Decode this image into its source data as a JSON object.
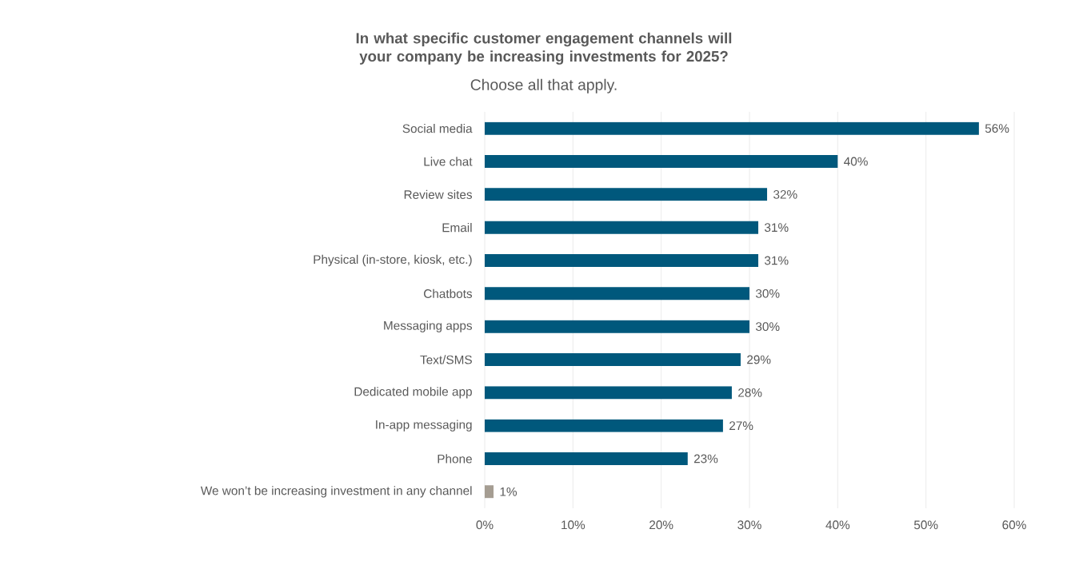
{
  "chart_data": {
    "type": "bar",
    "orientation": "horizontal",
    "title": "In what specific customer engagement channels will your company be increasing investments for 2025?",
    "subtitle": "Choose all that apply.",
    "categories": [
      "Social media",
      "Live chat",
      "Review sites",
      "Email",
      "Physical (in-store, kiosk, etc.)",
      "Chatbots",
      "Messaging apps",
      "Text/SMS",
      "Dedicated mobile app",
      "In-app messaging",
      "Phone",
      "We won’t be increasing investment in any channel"
    ],
    "values": [
      56,
      40,
      32,
      31,
      31,
      30,
      30,
      29,
      28,
      27,
      23,
      1
    ],
    "value_labels": [
      "56%",
      "40%",
      "32%",
      "31%",
      "31%",
      "30%",
      "30%",
      "29%",
      "28%",
      "27%",
      "23%",
      "1%"
    ],
    "colors": [
      "#00587c",
      "#00587c",
      "#00587c",
      "#00587c",
      "#00587c",
      "#00587c",
      "#00587c",
      "#00587c",
      "#00587c",
      "#00587c",
      "#00587c",
      "#a59d92"
    ],
    "xlim": [
      0,
      60
    ],
    "xticks": [
      {
        "value": 0,
        "label": "0%"
      },
      {
        "value": 10,
        "label": "10%"
      },
      {
        "value": 20,
        "label": "20%"
      },
      {
        "value": 30,
        "label": "30%"
      },
      {
        "value": 40,
        "label": "40%"
      },
      {
        "value": 50,
        "label": "50%"
      },
      {
        "value": 60,
        "label": "60%"
      }
    ],
    "grid": "x"
  }
}
